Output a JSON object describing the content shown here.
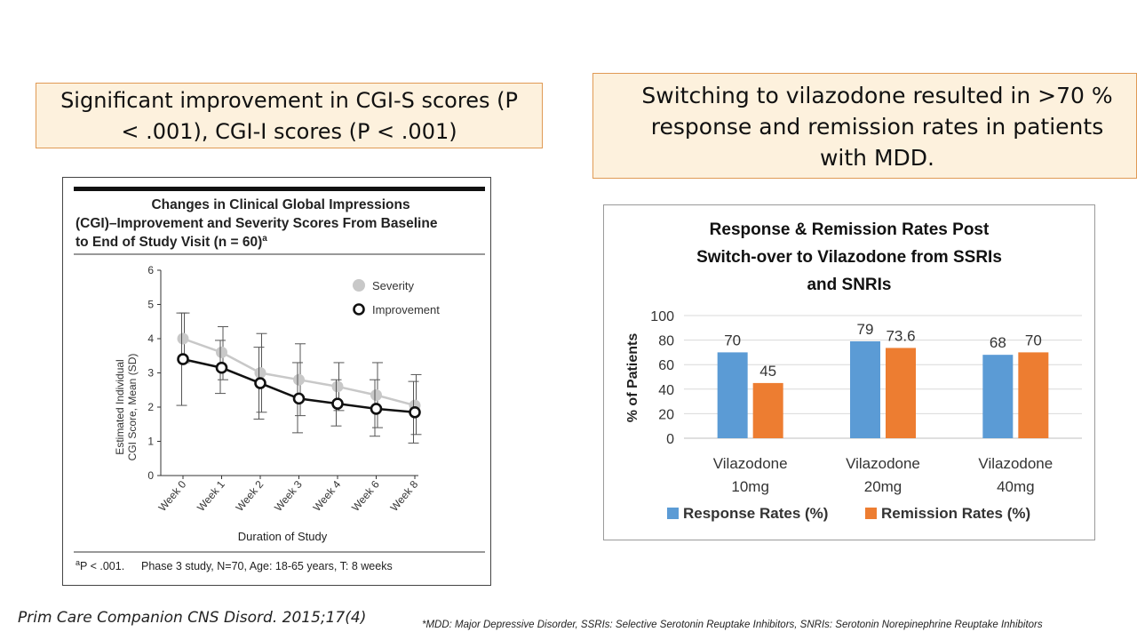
{
  "callout_left": {
    "line1": "Significant improvement in CGI-S scores (P",
    "line2": "< .001), CGI-I scores (P < .001)"
  },
  "callout_right": {
    "line1": "Switching to vilazodone resulted in >70 %",
    "line2": "response and remission rates in patients",
    "line3": "with MDD."
  },
  "figure_left": {
    "title_line1": "Changes in Clinical Global Impressions",
    "title_line2": "(CGI)–Improvement and Severity Scores From Baseline",
    "title_line3": "to End of Study Visit (n = 60)",
    "title_superscript": "a",
    "footnote_mark": "a",
    "footnote_p": "P < .001.",
    "footnote_study": "Phase 3 study, N=70, Age: 18-65 years, T: 8 weeks"
  },
  "chart_data": [
    {
      "type": "line",
      "title": "",
      "xlabel": "Duration of Study",
      "ylabel": "Estimated Individual CGI Score, Mean (SD)",
      "categories": [
        "Week 0",
        "Week 1",
        "Week 2",
        "Week 3",
        "Week 4",
        "Week 6",
        "Week 8"
      ],
      "yticks": [
        0,
        1,
        2,
        3,
        4,
        5,
        6
      ],
      "ylim": [
        0,
        6
      ],
      "legend_position": "top-right",
      "series": [
        {
          "name": "Severity",
          "color": "#c8c8c8",
          "marker": "filled-circle",
          "values": [
            4.0,
            3.6,
            3.0,
            2.8,
            2.6,
            2.35,
            2.05
          ],
          "sd_low": [
            3.3,
            2.8,
            1.85,
            1.75,
            1.9,
            1.4,
            1.2
          ],
          "sd_high": [
            4.75,
            4.35,
            4.15,
            3.85,
            3.3,
            3.3,
            2.95
          ]
        },
        {
          "name": "Improvement",
          "color": "#111111",
          "marker": "open-circle",
          "values": [
            3.4,
            3.15,
            2.7,
            2.25,
            2.1,
            1.95,
            1.85
          ],
          "sd_low": [
            2.05,
            2.4,
            1.65,
            1.25,
            1.45,
            1.15,
            0.95
          ],
          "sd_high": [
            4.75,
            3.95,
            3.75,
            3.3,
            2.8,
            2.8,
            2.75
          ]
        }
      ]
    },
    {
      "type": "bar",
      "title": "Response & Remission Rates Post Switch-over to Vilazodone from SSRIs and SNRIs",
      "title_lines": [
        "Response & Remission Rates Post",
        "Switch-over to Vilazodone from SSRIs",
        "and SNRIs"
      ],
      "xlabel": "",
      "ylabel": "% of Patients",
      "categories": [
        [
          "Vilazodone",
          "10mg"
        ],
        [
          "Vilazodone",
          "20mg"
        ],
        [
          "Vilazodone",
          "40mg"
        ]
      ],
      "ylim": [
        0,
        100
      ],
      "yticks": [
        0,
        20,
        40,
        60,
        80,
        100
      ],
      "grid": true,
      "legend_position": "bottom",
      "series": [
        {
          "name": "Response Rates (%)",
          "color": "#5b9bd5",
          "values": [
            70,
            79,
            68
          ],
          "labels": [
            "70",
            "79",
            "68"
          ]
        },
        {
          "name": "Remission Rates (%)",
          "color": "#ed7d31",
          "values": [
            45,
            73.6,
            70
          ],
          "labels": [
            "45",
            "73.6",
            "70"
          ]
        }
      ]
    }
  ],
  "citation": "Prim Care Companion CNS Disord.  2015;17(4)",
  "footnote": "*MDD: Major Depressive Disorder, SSRIs: Selective Serotonin Reuptake Inhibitors, SNRIs: Serotonin Norepinephrine Reuptake Inhibitors"
}
